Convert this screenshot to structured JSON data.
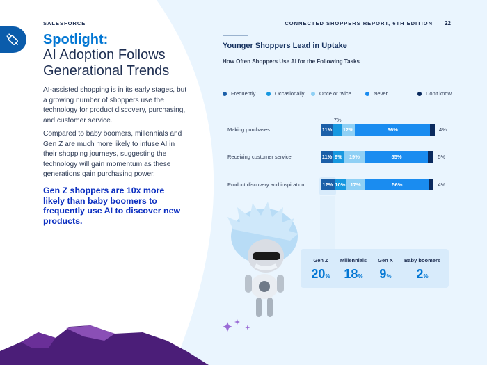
{
  "header": {
    "brand": "SALESFORCE",
    "report": "CONNECTED SHOPPERS REPORT, 6TH EDITION",
    "page_number": "22"
  },
  "icons": {
    "badge": "usb-plug-icon"
  },
  "left": {
    "title_spotlight": "Spotlight:",
    "title_main": "AI Adoption Follows Generational Trends",
    "paragraph_1": "AI-assisted shopping is in its early stages, but a growing number of shoppers use the technology for product discovery, purchasing, and customer service.",
    "paragraph_2": "Compared to baby boomers, millennials and Gen Z are much more likely to infuse AI in their shopping journeys, suggesting the technology will gain momentum as these generations gain purchasing power.",
    "callout": "Gen Z shoppers are 10x more likely than baby boomers to frequently use AI to discover new products."
  },
  "chart_data": {
    "type": "bar",
    "orientation": "horizontal",
    "stacked": true,
    "title": "Younger Shoppers Lead in Uptake",
    "subtitle": "How Often Shoppers Use AI for the Following Tasks",
    "categories": [
      "Making purchases",
      "Receiving customer service",
      "Product discovery and inspiration"
    ],
    "series": [
      {
        "name": "Frequently",
        "color": "#1b5fa8",
        "values": [
          11,
          11,
          12
        ],
        "labels": [
          "11%",
          "11%",
          "12%"
        ]
      },
      {
        "name": "Occasionally",
        "color": "#1798e0",
        "values": [
          7,
          9,
          10
        ],
        "labels": [
          "7%",
          "9%",
          "10%"
        ]
      },
      {
        "name": "Once or twice",
        "color": "#8fd0f5",
        "values": [
          12,
          19,
          17
        ],
        "labels": [
          "12%",
          "19%",
          "17%"
        ]
      },
      {
        "name": "Never",
        "color": "#1a8cf0",
        "values": [
          66,
          55,
          56
        ],
        "labels": [
          "66%",
          "55%",
          "56%"
        ]
      },
      {
        "name": "Don't know",
        "color": "#0a2a5e",
        "values": [
          4,
          5,
          4
        ],
        "labels": [
          "4%",
          "5%",
          "4%"
        ]
      }
    ],
    "legend_position": "top",
    "xlim": [
      0,
      100
    ],
    "grid": false
  },
  "generations": {
    "category": "Product discovery and inspiration",
    "measure": "Frequently",
    "items": [
      {
        "name": "Gen Z",
        "value": "20",
        "unit": "%"
      },
      {
        "name": "Millennials",
        "value": "18",
        "unit": "%"
      },
      {
        "name": "Gen X",
        "value": "9",
        "unit": "%"
      },
      {
        "name": "Baby boomers",
        "value": "2",
        "unit": "%"
      }
    ]
  },
  "colors": {
    "accent": "#0176d3",
    "navy": "#1f2f52",
    "callout": "#0b2ec0",
    "panel_bg": "#eaf5fe"
  }
}
